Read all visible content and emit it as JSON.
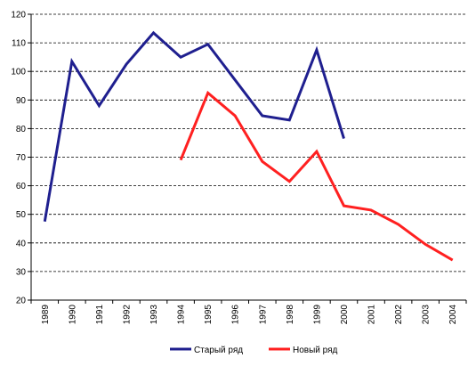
{
  "chart_data": {
    "type": "line",
    "categories": [
      "1989",
      "1990",
      "1991",
      "1992",
      "1993",
      "1994",
      "1995",
      "1996",
      "1997",
      "1998",
      "1999",
      "2000",
      "2001",
      "2002",
      "2003",
      "2004"
    ],
    "ylim": [
      20,
      120
    ],
    "yticks": [
      20,
      30,
      40,
      50,
      60,
      70,
      80,
      90,
      100,
      110,
      120
    ],
    "grid": true,
    "legend_position": "bottom",
    "series": [
      {
        "name": "Старый ряд",
        "color": "#1f1f8f",
        "values": [
          47.5,
          103.5,
          88,
          102.5,
          113.5,
          105,
          109.5,
          97,
          84.5,
          83,
          107.5,
          76.5,
          null,
          null,
          null,
          null
        ]
      },
      {
        "name": "Новый ряд",
        "color": "#ff2020",
        "values": [
          null,
          null,
          null,
          null,
          null,
          69,
          92.5,
          84.5,
          68.5,
          61.5,
          72,
          53,
          51.5,
          46.5,
          39.5,
          34
        ]
      }
    ]
  }
}
